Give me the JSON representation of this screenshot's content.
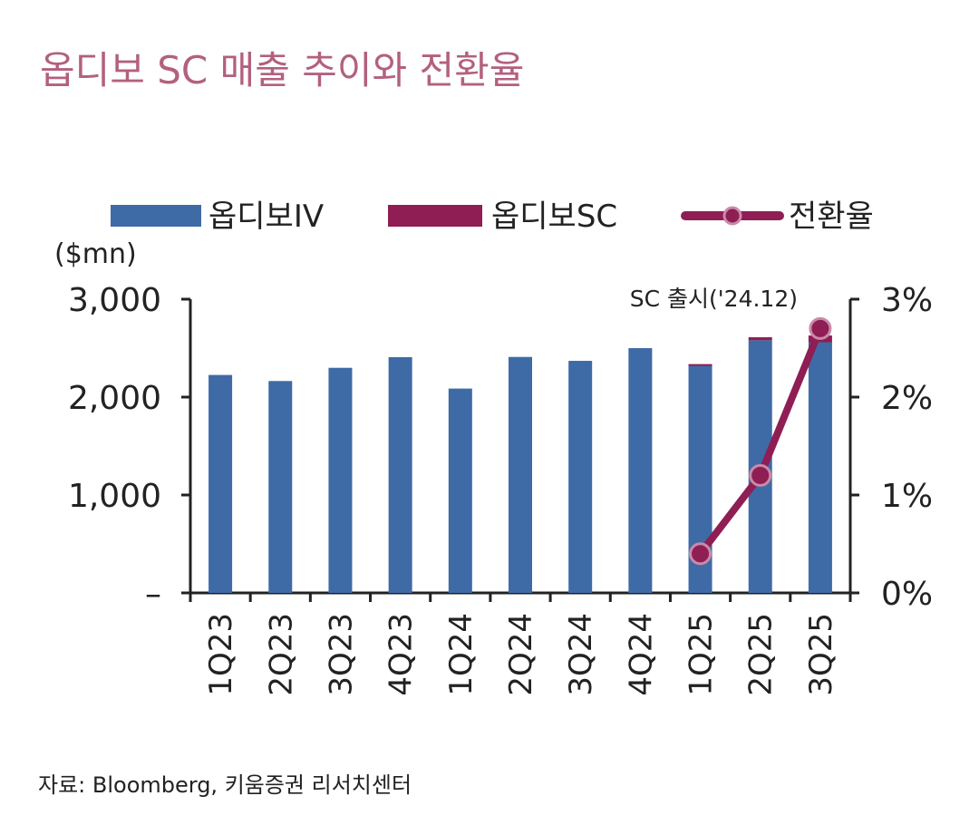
{
  "chart_data": {
    "type": "bar",
    "title": "옵디보 SC 매출 추이와 전환율",
    "source": "자료: Bloomberg, 키움증권 리서치센터",
    "ylabel_left": "($mn)",
    "annotation": "SC 출시('24.12)",
    "categories": [
      "1Q23",
      "2Q23",
      "3Q23",
      "4Q23",
      "1Q24",
      "2Q24",
      "3Q24",
      "4Q24",
      "1Q25",
      "2Q25",
      "3Q25"
    ],
    "series": [
      {
        "name": "옵디보IV",
        "kind": "bar-stacked",
        "axis": "left",
        "values": [
          2226,
          2164,
          2299,
          2408,
          2087,
          2410,
          2370,
          2500,
          2327,
          2580,
          2560
        ]
      },
      {
        "name": "옵디보SC",
        "kind": "bar-stacked",
        "axis": "left",
        "values": [
          0,
          0,
          0,
          0,
          0,
          0,
          0,
          0,
          10,
          31,
          69
        ]
      },
      {
        "name": "전환율",
        "kind": "line",
        "axis": "right",
        "values": [
          null,
          null,
          null,
          null,
          null,
          null,
          null,
          null,
          0.4,
          1.2,
          2.7
        ]
      }
    ],
    "ylim_left": [
      0,
      3000
    ],
    "ylim_right": [
      0,
      3
    ],
    "yticks_left": [
      "–",
      "1,000",
      "2,000",
      "3,000"
    ],
    "yticks_right": [
      "0%",
      "1%",
      "2%",
      "3%"
    ],
    "colors": {
      "iv": "#3e6ba6",
      "sc": "#8e1e54",
      "rate": "#8e1e54"
    },
    "legend_position": "top",
    "grid": false
  }
}
